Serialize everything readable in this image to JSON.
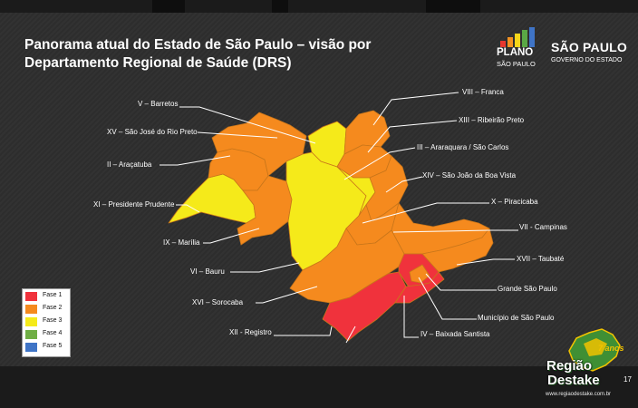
{
  "title": "Panorama atual do Estado de São Paulo – visão por Departamento Regional de Saúde (DRS)",
  "logos": {
    "plano_line1": "PLANO",
    "plano_line2": "SÃO PAULO",
    "sp_line1": "SÃO PAULO",
    "sp_line2": "GOVERNO DO ESTADO"
  },
  "colors": {
    "fase1": "#f0323c",
    "fase2": "#f58a1e",
    "fase3": "#f5ea1a",
    "fase4": "#6fae45",
    "fase5": "#3f74c6"
  },
  "regions": {
    "r5": "V – Barretos",
    "r15": "XV – São José do Rio Preto",
    "r2": "II – Araçatuba",
    "r11": "XI – Presidente Prudente",
    "r9": "IX – Marília",
    "r6": "VI – Bauru",
    "r16": "XVI – Sorocaba",
    "r12": "XII - Registro",
    "r8": "VIII – Franca",
    "r13": "XIII – Ribeirão Preto",
    "r3": "III – Araraquara / São Carlos",
    "r14": "XIV – São João da Boa Vista",
    "r10": "X – Piracicaba",
    "r7": "VII - Campinas",
    "r17": "XVII – Taubaté",
    "gsp": "Grande São Paulo",
    "msp": "Município de São Paulo",
    "r4": "IV – Baixada Santista"
  },
  "region_phase": {
    "r5": "fase3",
    "r15": "fase2",
    "r2": "fase2",
    "r11": "fase3",
    "r9": "fase2",
    "r6": "fase3",
    "r16": "fase2",
    "r12": "fase1",
    "r8": "fase2",
    "r13": "fase2",
    "r3": "fase3",
    "r14": "fase2",
    "r10": "fase2",
    "r7": "fase2",
    "r17": "fase2",
    "gsp": "fase1",
    "msp": "fase2",
    "r4": "fase1"
  },
  "legend": [
    "Fase 1",
    "Fase 2",
    "Fase 3",
    "Fase 4",
    "Fase 5"
  ],
  "page_number": "17",
  "watermark": {
    "line1": "Região",
    "line2": "Destake",
    "badge": "7 anos",
    "url": "www.regiaodestake.com.br"
  }
}
